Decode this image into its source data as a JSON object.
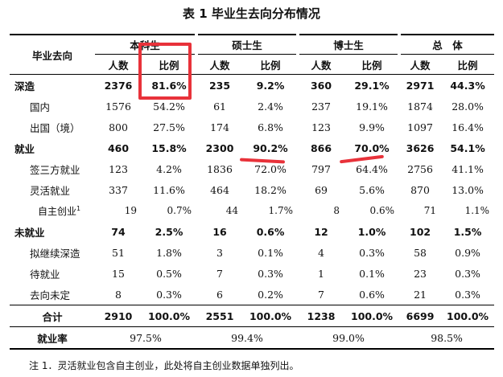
{
  "title": "表 1 毕业生去向分布情况",
  "header": {
    "row_label": "毕业去向",
    "groups": [
      "本科生",
      "硕士生",
      "博士生",
      "总　体"
    ],
    "sub_count": "人数",
    "sub_ratio": "比例"
  },
  "rows": [
    {
      "label": "深造",
      "vals": [
        "2376",
        "81.6%",
        "235",
        "9.2%",
        "360",
        "29.1%",
        "2971",
        "44.3%"
      ]
    },
    {
      "label": "国内",
      "vals": [
        "1576",
        "54.2%",
        "61",
        "2.4%",
        "237",
        "19.1%",
        "1874",
        "28.0%"
      ]
    },
    {
      "label": "出国（境）",
      "vals": [
        "800",
        "27.5%",
        "174",
        "6.8%",
        "123",
        "9.9%",
        "1097",
        "16.4%"
      ]
    },
    {
      "label": "就业",
      "vals": [
        "460",
        "15.8%",
        "2300",
        "90.2%",
        "866",
        "70.0%",
        "3626",
        "54.1%"
      ]
    },
    {
      "label": "签三方就业",
      "vals": [
        "123",
        "4.2%",
        "1836",
        "72.0%",
        "797",
        "64.4%",
        "2756",
        "41.1%"
      ]
    },
    {
      "label": "灵活就业",
      "vals": [
        "337",
        "11.6%",
        "464",
        "18.2%",
        "69",
        "5.6%",
        "870",
        "13.0%"
      ]
    },
    {
      "label": "自主创业",
      "sup": "1",
      "vals": [
        "19",
        "0.7%",
        "44",
        "1.7%",
        "8",
        "0.6%",
        "71",
        "1.1%"
      ]
    },
    {
      "label": "未就业",
      "vals": [
        "74",
        "2.5%",
        "16",
        "0.6%",
        "12",
        "1.0%",
        "102",
        "1.5%"
      ]
    },
    {
      "label": "拟继续深造",
      "vals": [
        "51",
        "1.8%",
        "3",
        "0.1%",
        "4",
        "0.3%",
        "58",
        "0.9%"
      ]
    },
    {
      "label": "待就业",
      "vals": [
        "15",
        "0.5%",
        "7",
        "0.3%",
        "1",
        "0.1%",
        "23",
        "0.3%"
      ]
    },
    {
      "label": "去向未定",
      "vals": [
        "8",
        "0.3%",
        "6",
        "0.2%",
        "7",
        "0.6%",
        "21",
        "0.3%"
      ]
    },
    {
      "label": "合计",
      "vals": [
        "2910",
        "100.0%",
        "2551",
        "100.0%",
        "1238",
        "100.0%",
        "6699",
        "100.0%"
      ]
    }
  ],
  "employment_rate": {
    "label": "就业率",
    "vals": [
      "97.5%",
      "99.4%",
      "99.0%",
      "98.5%"
    ]
  },
  "footnote": "注 1．灵活就业包含自主创业，此处将自主创业数据单独列出。",
  "annotation_color": "#e8323a"
}
